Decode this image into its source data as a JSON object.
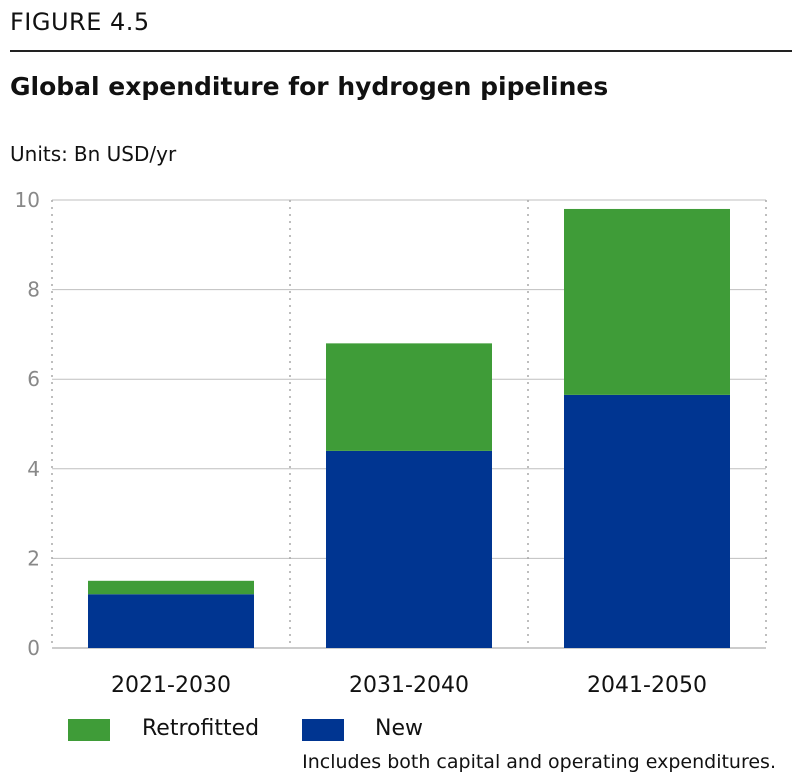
{
  "figure_label": "FIGURE 4.5",
  "title": "Global expenditure for hydrogen pipelines",
  "units_prefix": "Units:",
  "units_value": "Bn USD/yr",
  "note": "Includes both capital and operating expenditures.",
  "colors": {
    "new": "#003591",
    "retrofitted": "#3f9c38",
    "grid": "#bfbfbf",
    "axis_text": "#888888"
  },
  "chart_data": {
    "type": "bar",
    "stacked": true,
    "categories": [
      "2021-2030",
      "2031-2040",
      "2041-2050"
    ],
    "series": [
      {
        "name": "New",
        "values": [
          1.2,
          4.4,
          5.65
        ]
      },
      {
        "name": "Retrofitted",
        "values": [
          0.3,
          2.4,
          4.15
        ]
      }
    ],
    "ylim": [
      0,
      10
    ],
    "yticks": [
      "0",
      "2",
      "4",
      "6",
      "8",
      "10"
    ],
    "grid": true,
    "legend_position": "bottom-left"
  },
  "legend": [
    {
      "label": "Retrofitted",
      "color": "#3f9c38"
    },
    {
      "label": "New",
      "color": "#003591"
    }
  ]
}
